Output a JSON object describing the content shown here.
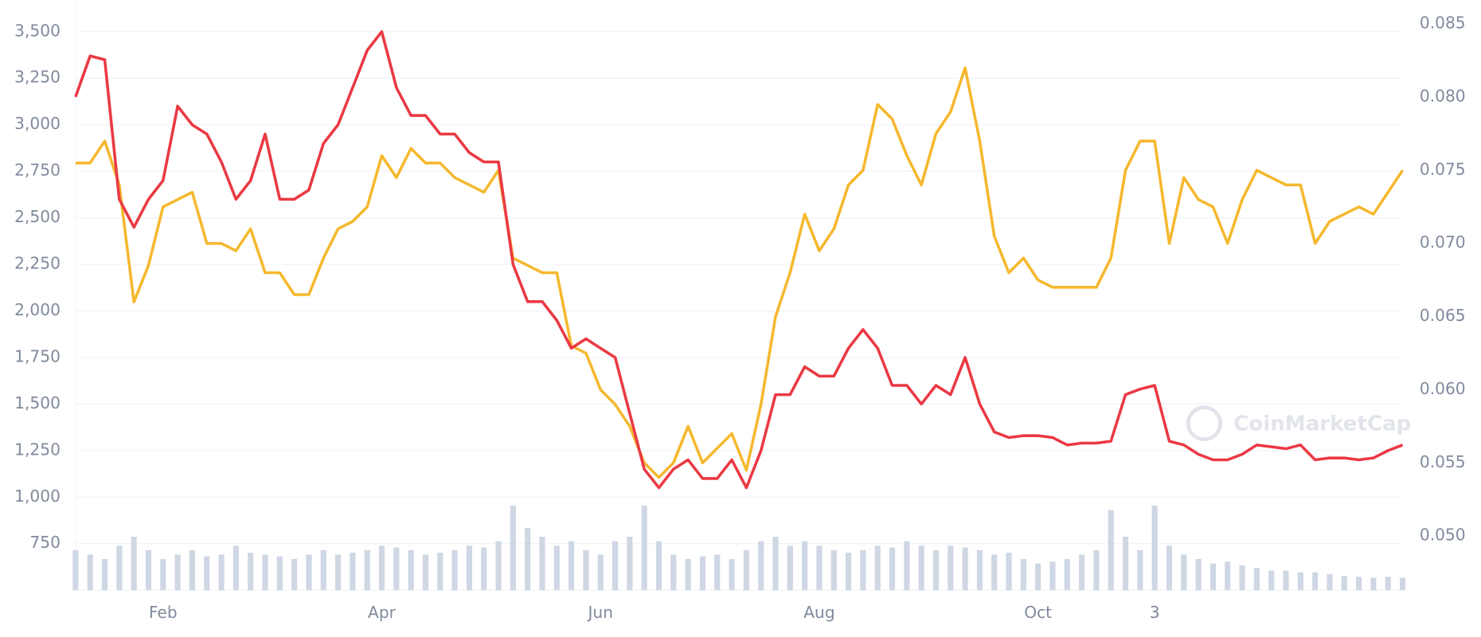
{
  "chart_data": {
    "type": "line",
    "categories": [
      null,
      null,
      null,
      null,
      null,
      null,
      "Feb",
      null,
      null,
      null,
      null,
      null,
      null,
      null,
      null,
      null,
      null,
      null,
      null,
      null,
      null,
      "Apr",
      null,
      null,
      null,
      null,
      null,
      null,
      null,
      null,
      null,
      null,
      null,
      null,
      null,
      null,
      "Jun",
      null,
      null,
      null,
      null,
      null,
      null,
      null,
      null,
      null,
      null,
      null,
      null,
      null,
      null,
      "Aug",
      null,
      null,
      null,
      null,
      null,
      null,
      null,
      null,
      null,
      null,
      null,
      null,
      null,
      null,
      "Oct",
      null,
      null,
      null,
      null,
      null,
      null,
      null,
      "3",
      null,
      null,
      null,
      null,
      null,
      null,
      null,
      null,
      null,
      null,
      null,
      null,
      null,
      null,
      null,
      null,
      null
    ],
    "series": [
      {
        "color": "#f5b82e",
        "axis": "y2",
        "values": [
          0.0755,
          0.0755,
          0.077,
          0.074,
          0.066,
          0.0685,
          0.0725,
          0.073,
          0.0735,
          0.07,
          0.07,
          0.0695,
          0.071,
          0.068,
          0.068,
          0.0665,
          0.0665,
          0.069,
          0.071,
          0.0715,
          0.0725,
          0.076,
          0.0745,
          0.0765,
          0.0755,
          0.0755,
          0.0745,
          0.074,
          0.0735,
          0.075,
          0.069,
          0.0685,
          0.068,
          0.068,
          0.063,
          0.0625,
          0.06,
          0.059,
          0.0575,
          0.055,
          0.054,
          0.055,
          0.0575,
          0.055,
          0.056,
          0.057,
          0.0545,
          0.059,
          0.065,
          0.068,
          0.072,
          0.0695,
          0.071,
          0.074,
          0.075,
          0.0795,
          0.0785,
          0.076,
          0.074,
          0.0775,
          0.079,
          0.082,
          0.077,
          0.0705,
          0.068,
          0.069,
          0.0675,
          0.067,
          0.067,
          0.067,
          0.067,
          0.069,
          0.075,
          0.077,
          0.077,
          0.07,
          0.0745,
          0.073,
          0.0725,
          0.07,
          0.073,
          0.075,
          0.0745,
          0.074,
          0.074,
          0.07,
          0.0715,
          0.072,
          0.0725,
          0.072,
          0.0735,
          0.075
        ]
      },
      {
        "color": "#ea3943",
        "values": [
          3150,
          3370,
          3350,
          2600,
          2450,
          2600,
          2700,
          3100,
          3000,
          2950,
          2800,
          2600,
          2700,
          2950,
          2600,
          2600,
          2650,
          2900,
          3000,
          3200,
          3400,
          3500,
          3200,
          3050,
          3050,
          2950,
          2950,
          2850,
          2800,
          2800,
          2250,
          2050,
          2050,
          1950,
          1800,
          1850,
          1800,
          1750,
          1450,
          1150,
          1050,
          1150,
          1200,
          1100,
          1100,
          1200,
          1050,
          1250,
          1550,
          1550,
          1700,
          1650,
          1650,
          1800,
          1900,
          1800,
          1600,
          1600,
          1500,
          1600,
          1550,
          1750,
          1500,
          1350,
          1320,
          1330,
          1330,
          1320,
          1280,
          1290,
          1290,
          1300,
          1550,
          1580,
          1600,
          1300,
          1280,
          1230,
          1200,
          1200,
          1230,
          1280,
          1270,
          1260,
          1280,
          1200,
          1210,
          1210,
          1200,
          1210,
          1250,
          1280
        ]
      }
    ],
    "volume": {
      "color": "#cfd6e4",
      "lim": [
        0,
        100
      ],
      "values": [
        45,
        40,
        35,
        50,
        60,
        45,
        35,
        40,
        45,
        38,
        40,
        50,
        42,
        40,
        38,
        35,
        40,
        45,
        40,
        42,
        45,
        50,
        48,
        45,
        40,
        42,
        45,
        50,
        48,
        55,
        95,
        70,
        60,
        50,
        55,
        45,
        40,
        55,
        60,
        95,
        55,
        40,
        35,
        38,
        40,
        35,
        45,
        55,
        60,
        50,
        55,
        50,
        45,
        42,
        45,
        50,
        48,
        55,
        50,
        45,
        50,
        48,
        45,
        40,
        42,
        35,
        30,
        32,
        35,
        40,
        45,
        90,
        60,
        45,
        95,
        50,
        40,
        35,
        30,
        32,
        28,
        25,
        22,
        22,
        20,
        20,
        18,
        16,
        15,
        14,
        15,
        14
      ]
    },
    "ylim": [
      500,
      3620
    ],
    "yticks": [
      750,
      {
        "value": 1000,
        "label": "1,000"
      },
      {
        "value": 1250,
        "label": "1,250"
      },
      {
        "value": 1500,
        "label": "1,500"
      },
      {
        "value": 1750,
        "label": "1,750"
      },
      {
        "value": 2000,
        "label": "2,000"
      },
      {
        "value": 2250,
        "label": "2,250"
      },
      {
        "value": 2500,
        "label": "2,500"
      },
      {
        "value": 2750,
        "label": "2,750"
      },
      {
        "value": 3000,
        "label": "3,000"
      },
      {
        "value": 3250,
        "label": "3,250"
      },
      {
        "value": 3500,
        "label": "3,500"
      }
    ],
    "y2lim": [
      0.0463,
      0.086
    ],
    "y2ticks": [
      {
        "value": 0.05,
        "label": "0.050"
      },
      0.055,
      {
        "value": 0.06,
        "label": "0.060"
      },
      0.065,
      {
        "value": 0.07,
        "label": "0.070"
      },
      0.075,
      {
        "value": 0.08,
        "label": "0.080"
      },
      0.085
    ],
    "grid": true,
    "watermark": "CoinMarketCap"
  }
}
